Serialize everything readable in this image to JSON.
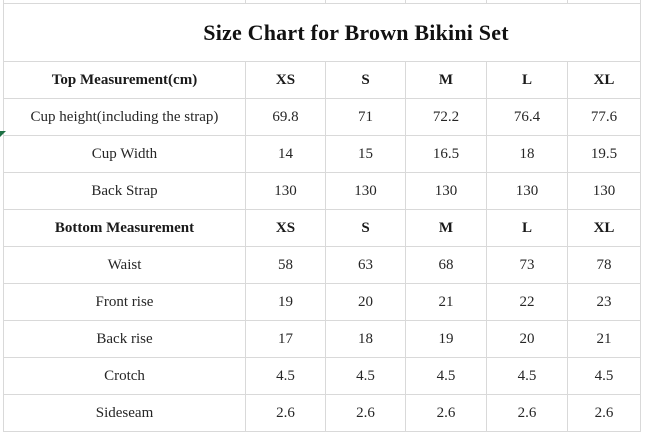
{
  "title": "Size Chart for Brown Bikini Set",
  "table": {
    "size_columns": [
      "XS",
      "S",
      "M",
      "L",
      "XL"
    ],
    "rows": [
      {
        "label": "Top Measurement(cm)",
        "values": [
          "XS",
          "S",
          "M",
          "L",
          "XL"
        ],
        "header": true
      },
      {
        "label": "Cup height(including the strap)",
        "values": [
          "69.8",
          "71",
          "72.2",
          "76.4",
          "77.6"
        ],
        "header": false
      },
      {
        "label": "Cup Width",
        "values": [
          "14",
          "15",
          "16.5",
          "18",
          "19.5"
        ],
        "header": false
      },
      {
        "label": "Back Strap",
        "values": [
          "130",
          "130",
          "130",
          "130",
          "130"
        ],
        "header": false
      },
      {
        "label": "Bottom Measurement",
        "values": [
          "XS",
          "S",
          "M",
          "L",
          "XL"
        ],
        "header": true
      },
      {
        "label": "Waist",
        "values": [
          "58",
          "63",
          "68",
          "73",
          "78"
        ],
        "header": false
      },
      {
        "label": "Front rise",
        "values": [
          "19",
          "20",
          "21",
          "22",
          "23"
        ],
        "header": false
      },
      {
        "label": "Back rise",
        "values": [
          "17",
          "18",
          "19",
          "20",
          "21"
        ],
        "header": false
      },
      {
        "label": "Crotch",
        "values": [
          "4.5",
          "4.5",
          "4.5",
          "4.5",
          "4.5"
        ],
        "header": false
      },
      {
        "label": "Sideseam",
        "values": [
          "2.6",
          "2.6",
          "2.6",
          "2.6",
          "2.6"
        ],
        "header": false
      }
    ]
  },
  "colors": {
    "background": "#ffffff",
    "grid_border": "#d9d9d9",
    "title_text": "#111111",
    "header_text": "#1a1a1a",
    "body_text": "#262626",
    "cell_marker_green": "#1e7145"
  }
}
